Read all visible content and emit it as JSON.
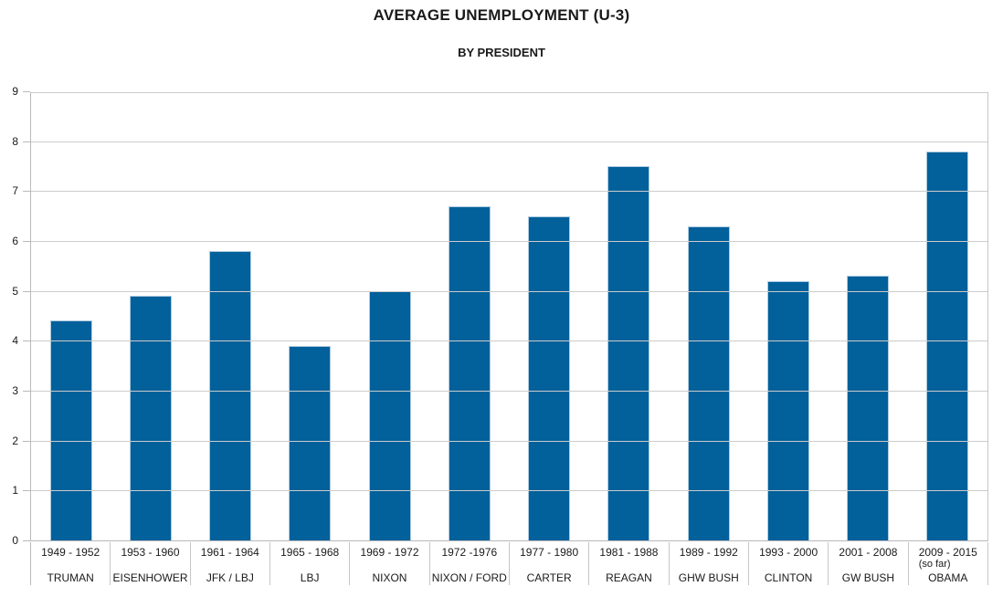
{
  "chart_data": {
    "type": "bar",
    "title": "AVERAGE UNEMPLOYMENT (U-3)",
    "subtitle": "BY PRESIDENT",
    "categories": [
      "1949 - 1952",
      "1953 - 1960",
      "1961 - 1964",
      "1965 - 1968",
      "1969 - 1972",
      "1972 -1976",
      "1977 - 1980",
      "1981 - 1988",
      "1989 - 1992",
      "1993 - 2000",
      "2001 - 2008",
      "2009 - 2015"
    ],
    "category_notes": [
      "",
      "",
      "",
      "",
      "",
      "",
      "",
      "",
      "",
      "",
      "",
      "(so far)"
    ],
    "presidents": [
      "TRUMAN",
      "EISENHOWER",
      "JFK / LBJ",
      "LBJ",
      "NIXON",
      "NIXON / FORD",
      "CARTER",
      "REAGAN",
      "GHW BUSH",
      "CLINTON",
      "GW BUSH",
      "OBAMA"
    ],
    "values": [
      4.4,
      4.9,
      5.8,
      3.9,
      5.0,
      6.7,
      6.5,
      7.5,
      6.3,
      5.2,
      5.3,
      7.8
    ],
    "xlabel": "",
    "ylabel": "",
    "ylim": [
      0,
      9
    ],
    "yticks": [
      0,
      1,
      2,
      3,
      4,
      5,
      6,
      7,
      8,
      9
    ],
    "grid": true,
    "legend": false
  },
  "colors": {
    "bar": "#02609b",
    "bar_border": "#aecbe0",
    "gridline": "#cccccc",
    "axis": "#b9b9b9",
    "text": "#1a1a1a"
  }
}
